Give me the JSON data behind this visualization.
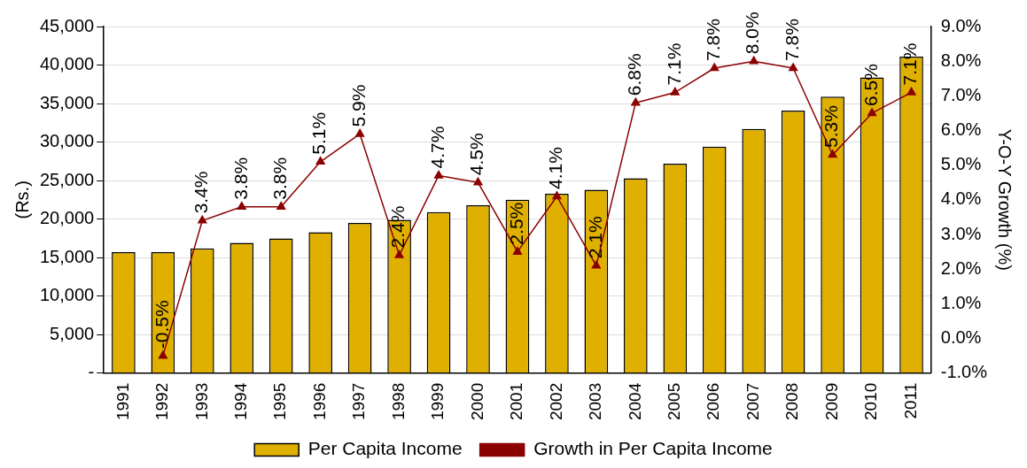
{
  "chart_data": {
    "type": "bar",
    "ylabel": "(Rs.)",
    "y2label": "Y-O-Y Growth (%)",
    "categories": [
      "1991",
      "1992",
      "1993",
      "1994",
      "1995",
      "1996",
      "1997",
      "1998",
      "1999",
      "2000",
      "2001",
      "2002",
      "2003",
      "2004",
      "2005",
      "2006",
      "2007",
      "2008",
      "2009",
      "2010",
      "2011"
    ],
    "series": [
      {
        "name": "Per Capita Income",
        "color": "#e0b000",
        "values": [
          15700,
          15700,
          16200,
          16900,
          17500,
          18300,
          19500,
          19900,
          20900,
          21800,
          22500,
          23300,
          23800,
          25300,
          27200,
          29400,
          31700,
          34100,
          35900,
          38400,
          41100
        ]
      },
      {
        "name": "Growth in Per Capita Income",
        "type": "line",
        "axis": "y2",
        "color": "#8b0000",
        "values": [
          null,
          -0.5,
          3.4,
          3.8,
          3.8,
          5.1,
          5.9,
          2.4,
          4.7,
          4.5,
          2.5,
          4.1,
          2.1,
          6.8,
          7.1,
          7.8,
          8.0,
          7.8,
          5.3,
          6.5,
          7.1
        ],
        "value_labels": [
          null,
          "-0.5%",
          "3.4%",
          "3.8%",
          "3.8%",
          "5.1%",
          "5.9%",
          "2.4%",
          "4.7%",
          "4.5%",
          "2.5%",
          "4.1%",
          "2.1%",
          "6.8%",
          "7.1%",
          "7.8%",
          "8.0%",
          "7.8%",
          "5.3%",
          "6.5%",
          "7.1%"
        ]
      }
    ],
    "ylim": [
      0,
      45000
    ],
    "yticks": [
      {
        "value": 0,
        "label": "-"
      },
      {
        "value": 5000,
        "label": "5,000"
      },
      {
        "value": 10000,
        "label": "10,000"
      },
      {
        "value": 15000,
        "label": "15,000"
      },
      {
        "value": 20000,
        "label": "20,000"
      },
      {
        "value": 25000,
        "label": "25,000"
      },
      {
        "value": 30000,
        "label": "30,000"
      },
      {
        "value": 35000,
        "label": "35,000"
      },
      {
        "value": 40000,
        "label": "40,000"
      },
      {
        "value": 45000,
        "label": "45,000"
      }
    ],
    "y2lim": [
      -1,
      9
    ],
    "y2ticks": [
      {
        "value": -1,
        "label": "-1.0%"
      },
      {
        "value": 0,
        "label": "0.0%"
      },
      {
        "value": 1,
        "label": "1.0%"
      },
      {
        "value": 2,
        "label": "2.0%"
      },
      {
        "value": 3,
        "label": "3.0%"
      },
      {
        "value": 4,
        "label": "4.0%"
      },
      {
        "value": 5,
        "label": "5.0%"
      },
      {
        "value": 6,
        "label": "6.0%"
      },
      {
        "value": 7,
        "label": "7.0%"
      },
      {
        "value": 8,
        "label": "8.0%"
      },
      {
        "value": 9,
        "label": "9.0%"
      }
    ],
    "grid": "y",
    "legend": "bottom",
    "marker": "triangle"
  }
}
